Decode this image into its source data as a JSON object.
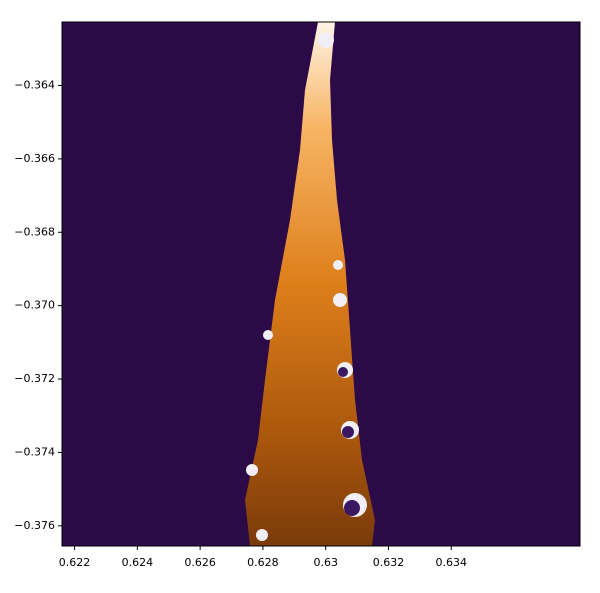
{
  "chart_data": {
    "type": "image",
    "xlim": [
      0.6216,
      0.6381
    ],
    "ylim": [
      -0.37655,
      -0.36227
    ],
    "xticks": [
      0.622,
      0.624,
      0.626,
      0.628,
      0.63,
      0.632,
      0.634
    ],
    "yticks": [
      {
        "value": -0.364,
        "label": "−0.364"
      },
      {
        "value": -0.366,
        "label": "−0.366"
      },
      {
        "value": -0.368,
        "label": "−0.368"
      },
      {
        "value": -0.37,
        "label": "−0.370"
      },
      {
        "value": -0.372,
        "label": "−0.372"
      },
      {
        "value": -0.374,
        "label": "−0.374"
      },
      {
        "value": -0.376,
        "label": "−0.376"
      }
    ],
    "color": "#2c0a47"
  }
}
